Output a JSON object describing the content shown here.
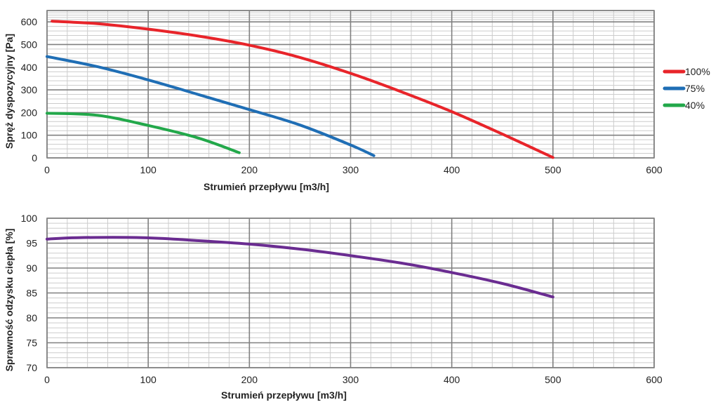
{
  "chart_data": [
    {
      "type": "line",
      "title": "",
      "xlabel": "Strumień przepływu  [m3/h]",
      "ylabel": "Spręż dyspozycyjny [Pa]",
      "xlim": [
        0,
        600
      ],
      "ylim": [
        0,
        650
      ],
      "xticks": [
        "0",
        "100",
        "200",
        "300",
        "400",
        "500",
        "600"
      ],
      "yticks": [
        "0",
        "100",
        "200",
        "300",
        "400",
        "500",
        "600"
      ],
      "grid": true,
      "legend": "right",
      "series": [
        {
          "name": "100%",
          "color": "#e8242a",
          "x": [
            5,
            50,
            100,
            150,
            200,
            250,
            300,
            350,
            400,
            450,
            500
          ],
          "y": [
            603,
            592,
            568,
            537,
            497,
            443,
            373,
            292,
            204,
            105,
            2
          ]
        },
        {
          "name": "75%",
          "color": "#1f6eb5",
          "x": [
            0,
            50,
            100,
            150,
            200,
            250,
            300,
            323
          ],
          "y": [
            447,
            402,
            344,
            279,
            213,
            145,
            57,
            10
          ]
        },
        {
          "name": "40%",
          "color": "#22a84a",
          "x": [
            0,
            50,
            100,
            150,
            190
          ],
          "y": [
            197,
            188,
            143,
            87,
            23
          ]
        }
      ]
    },
    {
      "type": "line",
      "title": "",
      "xlabel": "Strumień przepływu  [m3/h]",
      "ylabel": "Sprawność odzysku ciepła [%]",
      "xlim": [
        0,
        600
      ],
      "ylim": [
        70,
        100
      ],
      "xticks": [
        "0",
        "100",
        "200",
        "300",
        "400",
        "500",
        "600"
      ],
      "yticks": [
        "70",
        "75",
        "80",
        "85",
        "90",
        "95",
        "100"
      ],
      "grid": true,
      "series": [
        {
          "name": "",
          "color": "#6a2c91",
          "x": [
            0,
            30,
            95,
            150,
            200,
            250,
            300,
            350,
            400,
            450,
            500
          ],
          "y": [
            95.8,
            96.1,
            96.1,
            95.5,
            94.8,
            93.8,
            92.5,
            91.0,
            89.1,
            86.9,
            84.2
          ]
        }
      ]
    }
  ]
}
